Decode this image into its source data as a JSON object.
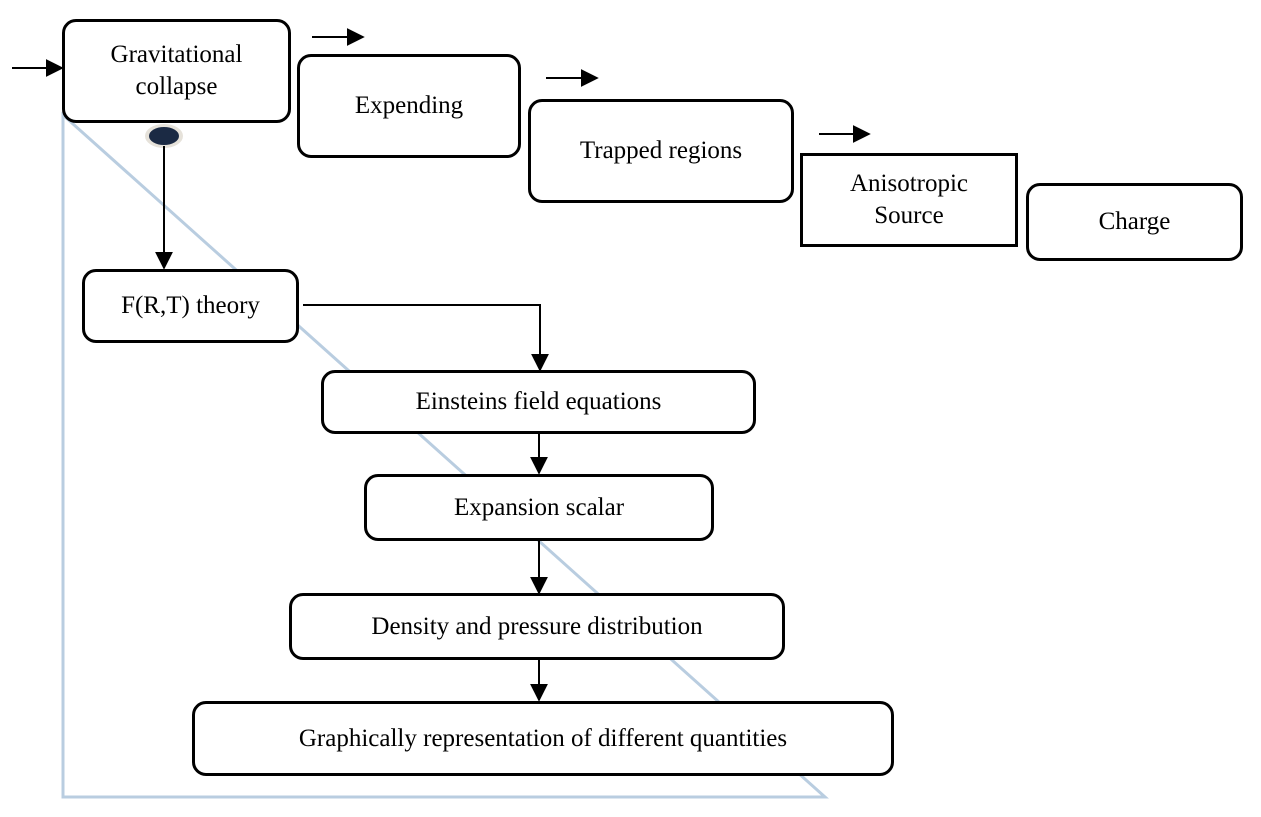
{
  "nodes": {
    "gravitational_collapse": "Gravitational\ncollapse",
    "expending": "Expending",
    "trapped_regions": "Trapped regions",
    "anisotropic_source": "Anisotropic\nSource",
    "charge": "Charge",
    "frt_theory": "F(R,T) theory",
    "einstein_field_equations": "Einsteins field equations",
    "expansion_scalar": "Expansion scalar",
    "density_pressure": "Density and pressure distribution",
    "graphical_representation": "Graphically representation of different quantities"
  },
  "colors": {
    "line": "#000000",
    "triangle": "#b9cde0",
    "dot": "#1b2a44"
  }
}
